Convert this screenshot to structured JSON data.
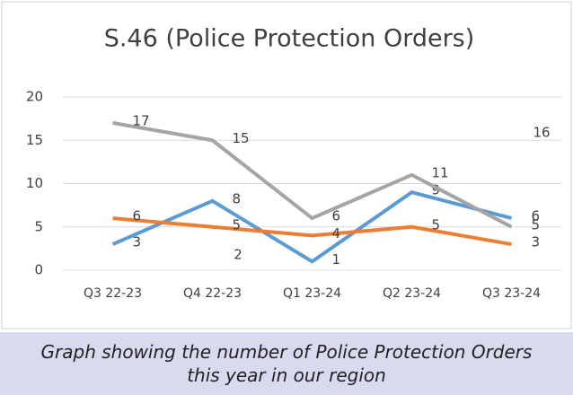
{
  "chart_data": {
    "type": "line",
    "title": "S.46 (Police Protection Orders)",
    "caption": "Graph showing the number of Police Protection Orders this year in our region",
    "categories": [
      "Q3 22-23",
      "Q4 22-23",
      "Q1 23-24",
      "Q2 23-24",
      "Q3 23-24"
    ],
    "series": [
      {
        "color": "#5b9bd5",
        "values": [
          3,
          8,
          1,
          9,
          6
        ]
      },
      {
        "color": "#ed7d31",
        "values": [
          6,
          5,
          4,
          5,
          3
        ]
      },
      {
        "color": "#a5a5a5",
        "values": [
          17,
          15,
          6,
          11,
          5
        ]
      }
    ],
    "annotations": [
      "16",
      "2"
    ],
    "ylim": [
      0,
      20
    ],
    "yticks": [
      0,
      5,
      10,
      15,
      20
    ],
    "grid": true
  }
}
